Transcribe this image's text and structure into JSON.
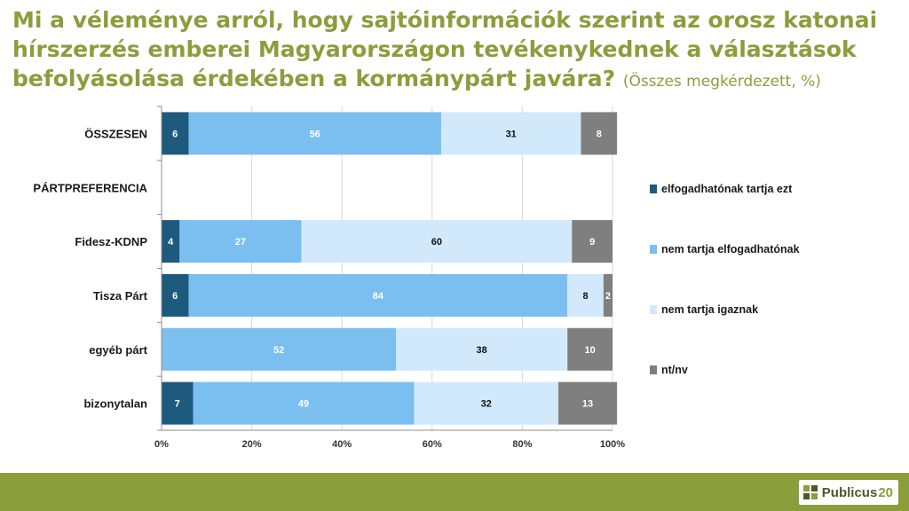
{
  "header": {
    "title": "Mi a véleménye arról, hogy sajtóinformációk szerint az orosz katonai hírszerzés emberei Magyarországon tevékenykednek a választások befolyásolása érdekében a kormánypárt javára?",
    "subtitle": "(Összes megkérdezett, %)"
  },
  "chart_data": {
    "type": "bar",
    "orientation": "horizontal",
    "stacked": true,
    "categories": [
      "ÖSSZESEN",
      "PÁRTPREFERENCIA",
      "Fidesz-KDNP",
      "Tisza Párt",
      "egyéb párt",
      "bizonytalan"
    ],
    "series": [
      {
        "name": "elfogadhatónak tartja ezt",
        "color": "#1e5a7e",
        "label_color": "#ffffff",
        "values": [
          6,
          null,
          4,
          6,
          0,
          7
        ]
      },
      {
        "name": "nem tartja elfogadhatónak",
        "color": "#7bbff0",
        "label_color": "#ffffff",
        "values": [
          56,
          null,
          27,
          84,
          52,
          49
        ]
      },
      {
        "name": "nem tartja igaznak",
        "color": "#d2e9fb",
        "label_color": "#111111",
        "values": [
          31,
          null,
          60,
          8,
          38,
          32
        ]
      },
      {
        "name": "nt/nv",
        "color": "#7f7f7f",
        "label_color": "#ffffff",
        "values": [
          8,
          null,
          9,
          2,
          10,
          13
        ]
      }
    ],
    "xlim": [
      0,
      100
    ],
    "xticks": [
      "0%",
      "20%",
      "40%",
      "60%",
      "80%",
      "100%"
    ],
    "legend_position": "right",
    "title": "",
    "xlabel": "",
    "ylabel": ""
  },
  "branding": {
    "logo_name": "Publicus",
    "logo_number": "20",
    "accent_color": "#8a9e3c"
  }
}
